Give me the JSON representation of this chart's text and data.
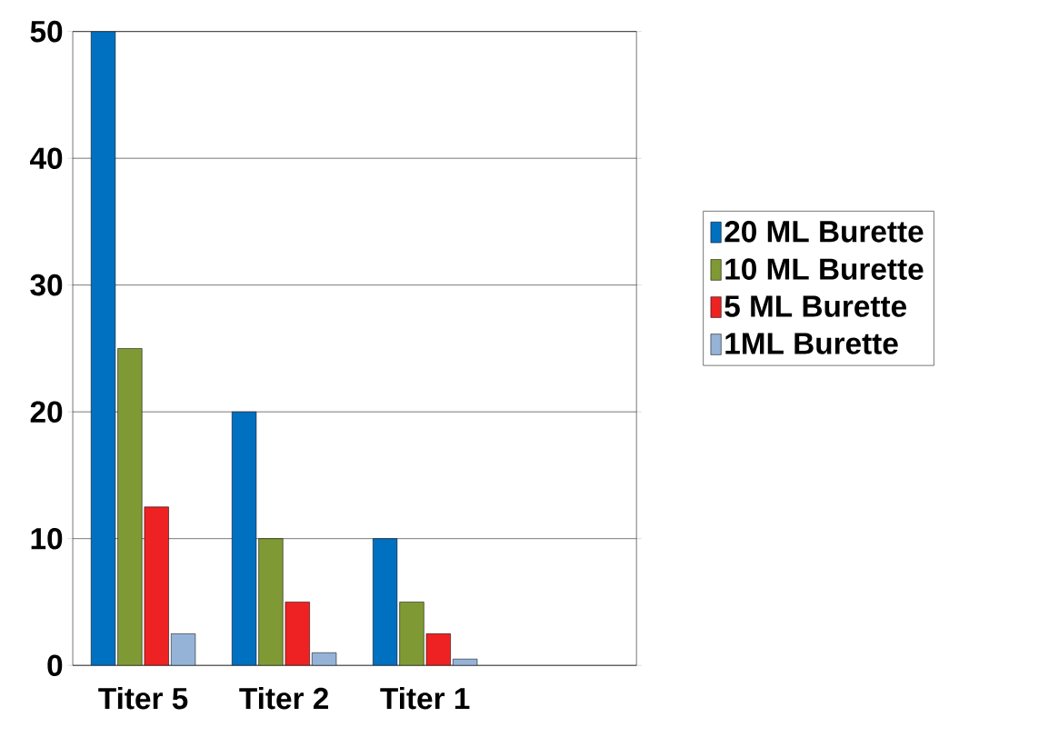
{
  "chart_data": {
    "type": "bar",
    "categories": [
      "Titer 5",
      "Titer 2",
      "Titer 1",
      null
    ],
    "series": [
      {
        "name": "20 ML Burette",
        "color": "#0070c0",
        "values": [
          50,
          20,
          10,
          null
        ]
      },
      {
        "name": "10 ML Burette",
        "color": "#7f9a34",
        "values": [
          25,
          10,
          5,
          null
        ]
      },
      {
        "name": "5 ML Burette",
        "color": "#ee2222",
        "values": [
          12.5,
          5,
          2.5,
          null
        ]
      },
      {
        "name": "1ML Burette",
        "color": "#95b3d7",
        "values": [
          2.5,
          1,
          0.5,
          null
        ]
      }
    ],
    "ylim": [
      0,
      50
    ],
    "yticks": [
      0,
      10,
      20,
      30,
      40,
      50
    ],
    "grid": "y",
    "legend": "right"
  }
}
